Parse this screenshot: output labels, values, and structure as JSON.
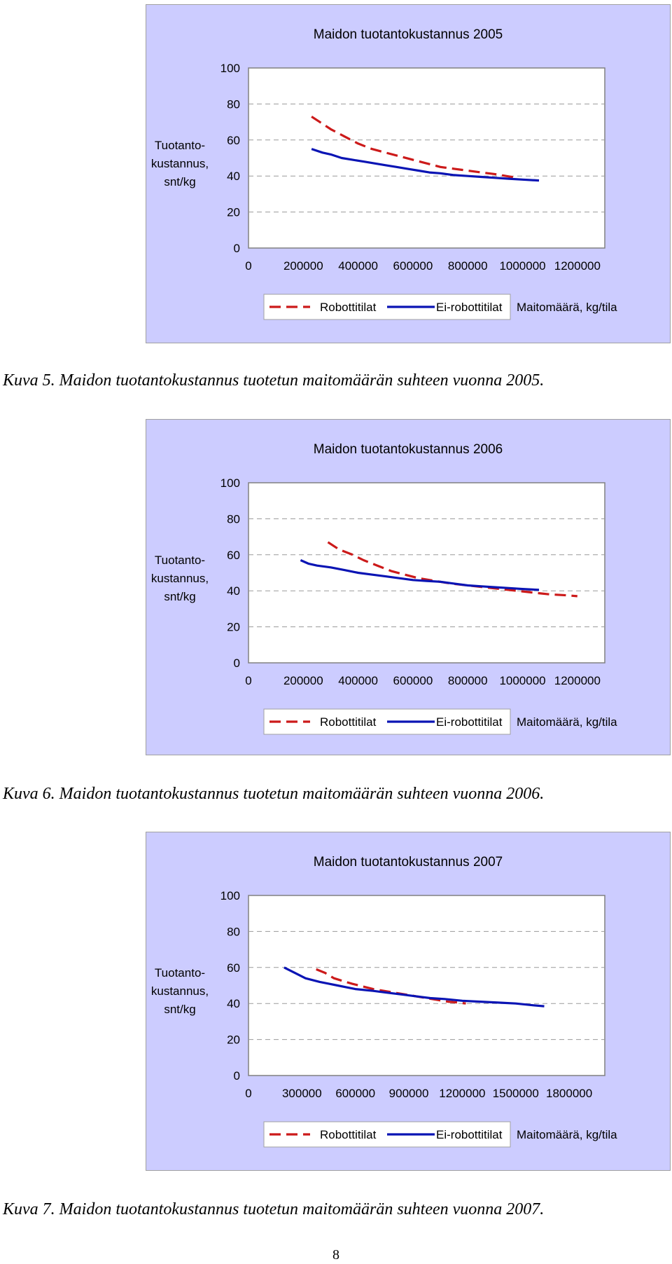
{
  "chart_data": [
    {
      "type": "line",
      "title": "Maidon tuotantokustannus 2005",
      "ylabel": [
        "Tuotanto-",
        "kustannus,",
        "snt/kg"
      ],
      "xlabel": "Maitomäärä, kg/tila",
      "ylim": [
        0,
        100
      ],
      "yticks": [
        0,
        20,
        40,
        60,
        80,
        100
      ],
      "xlim": [
        0,
        1300000
      ],
      "xticks": [
        0,
        200000,
        400000,
        600000,
        800000,
        1000000,
        1200000
      ],
      "grid": true,
      "legend_position": "bottom",
      "series": [
        {
          "name": "Robottitilat",
          "color": "#cc1a1a",
          "dash": true,
          "points": [
            [
              230000,
              73
            ],
            [
              260000,
              70
            ],
            [
              300000,
              66
            ],
            [
              350000,
              62
            ],
            [
              400000,
              58
            ],
            [
              450000,
              55
            ],
            [
              500000,
              53
            ],
            [
              550000,
              51
            ],
            [
              600000,
              49
            ],
            [
              650000,
              47
            ],
            [
              700000,
              45
            ],
            [
              750000,
              44
            ],
            [
              800000,
              43
            ],
            [
              850000,
              42
            ],
            [
              900000,
              41
            ],
            [
              940000,
              40
            ],
            [
              980000,
              39
            ]
          ]
        },
        {
          "name": "Ei-robottitilat",
          "color": "#0a14b4",
          "dash": false,
          "points": [
            [
              230000,
              55
            ],
            [
              270000,
              53
            ],
            [
              300000,
              52
            ],
            [
              340000,
              50
            ],
            [
              380000,
              49
            ],
            [
              420000,
              48
            ],
            [
              460000,
              47
            ],
            [
              500000,
              46
            ],
            [
              540000,
              45
            ],
            [
              580000,
              44
            ],
            [
              620000,
              43
            ],
            [
              660000,
              42
            ],
            [
              700000,
              41.5
            ],
            [
              750000,
              40.5
            ],
            [
              800000,
              40
            ],
            [
              850000,
              39.5
            ],
            [
              900000,
              39
            ],
            [
              950000,
              38.5
            ],
            [
              1000000,
              38
            ],
            [
              1060000,
              37.5
            ]
          ]
        }
      ]
    },
    {
      "type": "line",
      "title": "Maidon tuotantokustannus 2006",
      "ylabel": [
        "Tuotanto-",
        "kustannus,",
        "snt/kg"
      ],
      "xlabel": "Maitomäärä, kg/tila",
      "ylim": [
        0,
        100
      ],
      "yticks": [
        0,
        20,
        40,
        60,
        80,
        100
      ],
      "xlim": [
        0,
        1300000
      ],
      "xticks": [
        0,
        200000,
        400000,
        600000,
        800000,
        1000000,
        1200000
      ],
      "grid": true,
      "legend_position": "bottom",
      "series": [
        {
          "name": "Robottitilat",
          "color": "#cc1a1a",
          "dash": true,
          "points": [
            [
              290000,
              67
            ],
            [
              330000,
              63
            ],
            [
              380000,
              60
            ],
            [
              420000,
              57
            ],
            [
              470000,
              54
            ],
            [
              520000,
              51
            ],
            [
              570000,
              49
            ],
            [
              620000,
              47
            ],
            [
              680000,
              45.5
            ],
            [
              740000,
              44
            ],
            [
              800000,
              43
            ],
            [
              860000,
              42
            ],
            [
              920000,
              41
            ],
            [
              980000,
              40
            ],
            [
              1040000,
              39
            ],
            [
              1100000,
              38
            ],
            [
              1160000,
              37.5
            ],
            [
              1200000,
              37
            ]
          ]
        },
        {
          "name": "Ei-robottitilat",
          "color": "#0a14b4",
          "dash": false,
          "points": [
            [
              190000,
              57
            ],
            [
              220000,
              55
            ],
            [
              250000,
              54
            ],
            [
              300000,
              53
            ],
            [
              350000,
              51.5
            ],
            [
              400000,
              50
            ],
            [
              450000,
              49
            ],
            [
              500000,
              48
            ],
            [
              550000,
              47
            ],
            [
              600000,
              46
            ],
            [
              650000,
              45.5
            ],
            [
              700000,
              45
            ],
            [
              750000,
              44
            ],
            [
              800000,
              43
            ],
            [
              850000,
              42.5
            ],
            [
              900000,
              42
            ],
            [
              950000,
              41.5
            ],
            [
              1000000,
              41
            ],
            [
              1060000,
              40.5
            ]
          ]
        }
      ]
    },
    {
      "type": "line",
      "title": "Maidon tuotantokustannus 2007",
      "ylabel": [
        "Tuotanto-",
        "kustannus,",
        "snt/kg"
      ],
      "xlabel": "Maitomäärä, kg/tila",
      "ylim": [
        0,
        100
      ],
      "yticks": [
        0,
        20,
        40,
        60,
        80,
        100
      ],
      "xlim": [
        0,
        2000000
      ],
      "xticks": [
        0,
        300000,
        600000,
        900000,
        1200000,
        1500000,
        1800000
      ],
      "grid": true,
      "legend_position": "bottom",
      "series": [
        {
          "name": "Robottitilat",
          "color": "#cc1a1a",
          "dash": true,
          "points": [
            [
              380000,
              59
            ],
            [
              430000,
              57
            ],
            [
              480000,
              54
            ],
            [
              530000,
              52.5
            ],
            [
              580000,
              51
            ],
            [
              640000,
              49.5
            ],
            [
              700000,
              48
            ],
            [
              760000,
              47
            ],
            [
              820000,
              46
            ],
            [
              880000,
              45
            ],
            [
              940000,
              44
            ],
            [
              1000000,
              43
            ],
            [
              1060000,
              42
            ],
            [
              1120000,
              41
            ],
            [
              1180000,
              40.5
            ],
            [
              1220000,
              40
            ]
          ]
        },
        {
          "name": "Ei-robottitilat",
          "color": "#0a14b4",
          "dash": false,
          "points": [
            [
              200000,
              60
            ],
            [
              240000,
              58
            ],
            [
              280000,
              56
            ],
            [
              320000,
              54
            ],
            [
              360000,
              53
            ],
            [
              400000,
              52
            ],
            [
              450000,
              51
            ],
            [
              500000,
              50
            ],
            [
              550000,
              49
            ],
            [
              600000,
              48
            ],
            [
              650000,
              47.5
            ],
            [
              700000,
              47
            ],
            [
              780000,
              46
            ],
            [
              860000,
              45
            ],
            [
              940000,
              44
            ],
            [
              1020000,
              43
            ],
            [
              1100000,
              42.5
            ],
            [
              1200000,
              41.5
            ],
            [
              1300000,
              41
            ],
            [
              1400000,
              40.5
            ],
            [
              1500000,
              40
            ],
            [
              1600000,
              39
            ],
            [
              1660000,
              38.5
            ]
          ]
        }
      ]
    }
  ],
  "captions": [
    "Kuva 5. Maidon tuotantokustannus tuotetun maitomäärän suhteen vuonna 2005.",
    "Kuva 6. Maidon tuotantokustannus tuotetun maitomäärän suhteen vuonna 2006.",
    "Kuva 7. Maidon tuotantokustannus tuotetun maitomäärän suhteen vuonna 2007."
  ],
  "page_number": "8"
}
